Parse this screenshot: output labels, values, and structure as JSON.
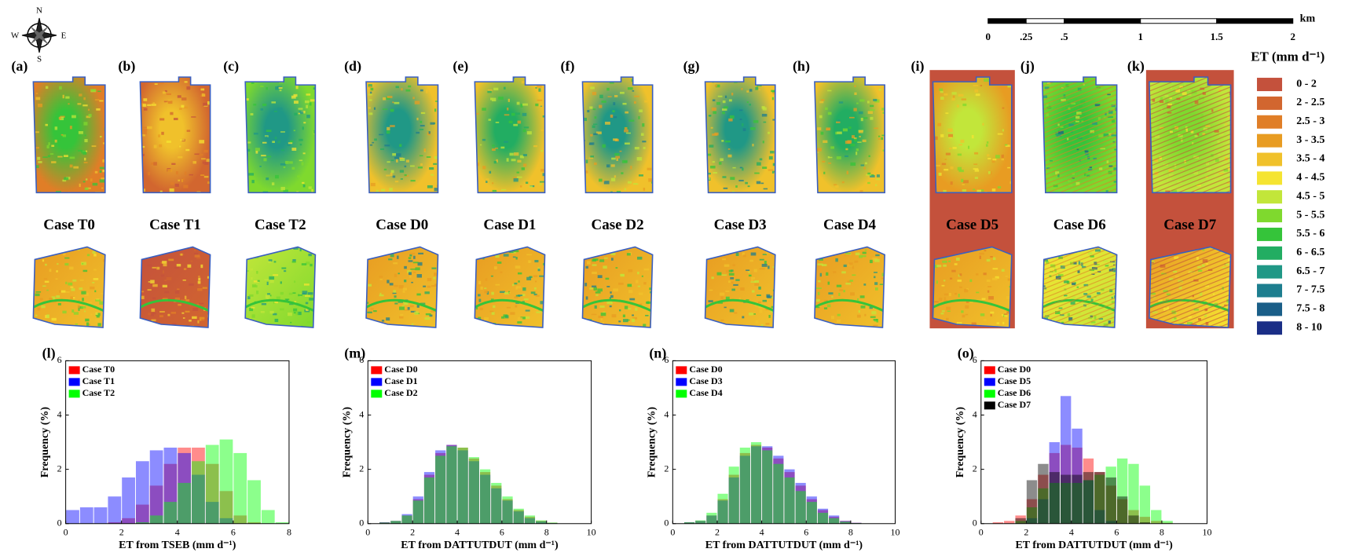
{
  "compass": [
    "N",
    "S",
    "W",
    "E"
  ],
  "scale_bar": {
    "unit": "km",
    "labels": [
      "0",
      ".25",
      ".5",
      "1",
      "1.5",
      "2"
    ]
  },
  "map_panels": [
    {
      "letter": "(a)",
      "label": "Case T0"
    },
    {
      "letter": "(b)",
      "label": "Case T1"
    },
    {
      "letter": "(c)",
      "label": "Case T2"
    },
    {
      "letter": "(d)",
      "label": "Case D0"
    },
    {
      "letter": "(e)",
      "label": "Case D1"
    },
    {
      "letter": "(f)",
      "label": "Case D2"
    },
    {
      "letter": "(g)",
      "label": "Case D3"
    },
    {
      "letter": "(h)",
      "label": "Case D4"
    },
    {
      "letter": "(i)",
      "label": "Case D5"
    },
    {
      "letter": "(j)",
      "label": "Case D6"
    },
    {
      "letter": "(k)",
      "label": "Case D7"
    }
  ],
  "legend": {
    "title": "ET (mm d⁻¹)",
    "items": [
      {
        "label": "0 - 2",
        "color": "#c4513c"
      },
      {
        "label": "2 - 2.5",
        "color": "#d2662f"
      },
      {
        "label": "2.5 - 3",
        "color": "#e07e27"
      },
      {
        "label": "3 - 3.5",
        "color": "#e89c22"
      },
      {
        "label": "3.5 - 4",
        "color": "#f0c12b"
      },
      {
        "label": "4 - 4.5",
        "color": "#f5e431"
      },
      {
        "label": "4.5 - 5",
        "color": "#c2e63a"
      },
      {
        "label": "5 - 5.5",
        "color": "#7fd92e"
      },
      {
        "label": "5.5 - 6",
        "color": "#35c43a"
      },
      {
        "label": "6 - 6.5",
        "color": "#22ad62"
      },
      {
        "label": "6.5 - 7",
        "color": "#209886"
      },
      {
        "label": "7 - 7.5",
        "color": "#1d7e8f"
      },
      {
        "label": "7.5 - 8",
        "color": "#1a5e88"
      },
      {
        "label": "8 - 10",
        "color": "#1a2e86"
      }
    ]
  },
  "chart_data": [
    {
      "type": "histogram",
      "title": "(l)",
      "xlabel": "ET from TSEB (mm d⁻¹)",
      "ylabel": "Frequency (%)",
      "legend": "upper left",
      "bins": [
        0,
        0.5,
        1,
        1.5,
        2,
        2.5,
        3,
        3.5,
        4,
        4.5,
        5,
        5.5,
        6,
        6.5,
        7,
        7.5,
        8
      ],
      "series": [
        {
          "name": "Case T0",
          "color": "#ff0000",
          "values": [
            0,
            0,
            0,
            0.05,
            0.2,
            0.7,
            1.4,
            2.2,
            2.8,
            2.8,
            2.2,
            1.2,
            0.3,
            0.05,
            0,
            0
          ]
        },
        {
          "name": "Case T1",
          "color": "#0000ff",
          "values": [
            0.5,
            0.6,
            0.6,
            1.0,
            1.7,
            2.3,
            2.7,
            2.8,
            2.6,
            1.8,
            0.8,
            0.2,
            0,
            0,
            0,
            0
          ]
        },
        {
          "name": "Case T2",
          "color": "#00ff00",
          "values": [
            0,
            0,
            0,
            0,
            0,
            0.05,
            0.3,
            0.8,
            1.5,
            2.3,
            2.9,
            3.1,
            2.6,
            1.6,
            0.5,
            0.05
          ]
        }
      ],
      "xlim": [
        0,
        8
      ],
      "xticks": [
        0,
        2,
        4,
        6,
        8
      ],
      "ylim": [
        0,
        6
      ],
      "yticks": [
        0,
        2,
        4,
        6
      ]
    },
    {
      "type": "histogram",
      "title": "(m)",
      "xlabel": "ET from DATTUTDUT (mm d⁻¹)",
      "ylabel": "Frequency (%)",
      "legend": "upper left",
      "bins": [
        0,
        0.5,
        1,
        1.5,
        2,
        2.5,
        3,
        3.5,
        4,
        4.5,
        5,
        5.5,
        6,
        6.5,
        7,
        7.5,
        8,
        8.5,
        9,
        9.5,
        10
      ],
      "series": [
        {
          "name": "Case D0",
          "color": "#ff0000",
          "values": [
            0,
            0.05,
            0.1,
            0.3,
            0.9,
            1.8,
            2.6,
            2.9,
            2.8,
            2.4,
            1.9,
            1.4,
            0.9,
            0.5,
            0.25,
            0.1,
            0.03,
            0,
            0,
            0
          ]
        },
        {
          "name": "Case D1",
          "color": "#0000ff",
          "values": [
            0,
            0.05,
            0.1,
            0.35,
            1.0,
            1.9,
            2.7,
            2.9,
            2.7,
            2.3,
            1.8,
            1.3,
            0.85,
            0.45,
            0.2,
            0.08,
            0.02,
            0,
            0,
            0
          ]
        },
        {
          "name": "Case D2",
          "color": "#00ff00",
          "values": [
            0,
            0.04,
            0.1,
            0.3,
            0.85,
            1.7,
            2.5,
            2.85,
            2.8,
            2.45,
            2.0,
            1.5,
            1.0,
            0.55,
            0.3,
            0.12,
            0.04,
            0,
            0,
            0
          ]
        }
      ],
      "xlim": [
        0,
        10
      ],
      "xticks": [
        0,
        2,
        4,
        6,
        8,
        10
      ],
      "ylim": [
        0,
        6
      ],
      "yticks": [
        0,
        2,
        4,
        6
      ]
    },
    {
      "type": "histogram",
      "title": "(n)",
      "xlabel": "ET from DATTUTDUT (mm d⁻¹)",
      "ylabel": "Frequency (%)",
      "legend": "upper left",
      "bins": [
        0,
        0.5,
        1,
        1.5,
        2,
        2.5,
        3,
        3.5,
        4,
        4.5,
        5,
        5.5,
        6,
        6.5,
        7,
        7.5,
        8,
        8.5,
        9,
        9.5,
        10
      ],
      "series": [
        {
          "name": "Case D0",
          "color": "#ff0000",
          "values": [
            0,
            0.05,
            0.1,
            0.3,
            0.9,
            1.8,
            2.6,
            2.9,
            2.8,
            2.4,
            1.9,
            1.4,
            0.9,
            0.5,
            0.25,
            0.1,
            0.03,
            0,
            0,
            0
          ]
        },
        {
          "name": "Case D3",
          "color": "#0000ff",
          "values": [
            0,
            0.05,
            0.1,
            0.3,
            0.85,
            1.7,
            2.5,
            2.85,
            2.85,
            2.5,
            2.0,
            1.5,
            1.0,
            0.55,
            0.3,
            0.1,
            0.03,
            0,
            0,
            0
          ]
        },
        {
          "name": "Case D4",
          "color": "#00ff00",
          "values": [
            0,
            0.05,
            0.12,
            0.4,
            1.1,
            2.1,
            2.8,
            3.0,
            2.7,
            2.2,
            1.7,
            1.2,
            0.8,
            0.4,
            0.2,
            0.07,
            0.02,
            0,
            0,
            0
          ]
        }
      ],
      "xlim": [
        0,
        10
      ],
      "xticks": [
        0,
        2,
        4,
        6,
        8,
        10
      ],
      "ylim": [
        0,
        6
      ],
      "yticks": [
        0,
        2,
        4,
        6
      ]
    },
    {
      "type": "histogram",
      "title": "(o)",
      "xlabel": "ET from DATTUTDUT (mm d⁻¹)",
      "ylabel": "Frequency (%)",
      "legend": "upper left",
      "bins": [
        0,
        0.5,
        1,
        1.5,
        2,
        2.5,
        3,
        3.5,
        4,
        4.5,
        5,
        5.5,
        6,
        6.5,
        7,
        7.5,
        8,
        8.5,
        9,
        9.5,
        10
      ],
      "series": [
        {
          "name": "Case D0",
          "color": "#ff0000",
          "values": [
            0,
            0.05,
            0.1,
            0.3,
            0.9,
            1.8,
            2.6,
            2.9,
            2.8,
            2.4,
            1.9,
            1.4,
            0.9,
            0.5,
            0.25,
            0.1,
            0.03,
            0,
            0,
            0
          ]
        },
        {
          "name": "Case D5",
          "color": "#0000ff",
          "values": [
            0,
            0,
            0,
            0,
            0.2,
            0.9,
            3.0,
            4.7,
            3.5,
            1.6,
            0.5,
            0.1,
            0,
            0,
            0,
            0,
            0,
            0,
            0,
            0
          ]
        },
        {
          "name": "Case D6",
          "color": "#00ff00",
          "values": [
            0,
            0,
            0,
            0.1,
            0.6,
            1.3,
            1.5,
            1.5,
            1.5,
            1.6,
            1.8,
            2.1,
            2.4,
            2.2,
            1.4,
            0.5,
            0.1,
            0,
            0,
            0
          ]
        },
        {
          "name": "Case D7",
          "color": "#000000",
          "values": [
            0,
            0,
            0,
            0.2,
            1.6,
            2.2,
            1.9,
            1.8,
            1.8,
            1.9,
            1.9,
            1.7,
            1.0,
            0.3,
            0.05,
            0,
            0,
            0,
            0,
            0
          ]
        }
      ],
      "xlim": [
        0,
        10
      ],
      "xticks": [
        0,
        2,
        4,
        6,
        8,
        10
      ],
      "ylim": [
        0,
        6
      ],
      "yticks": [
        0,
        2,
        4,
        6
      ]
    }
  ]
}
